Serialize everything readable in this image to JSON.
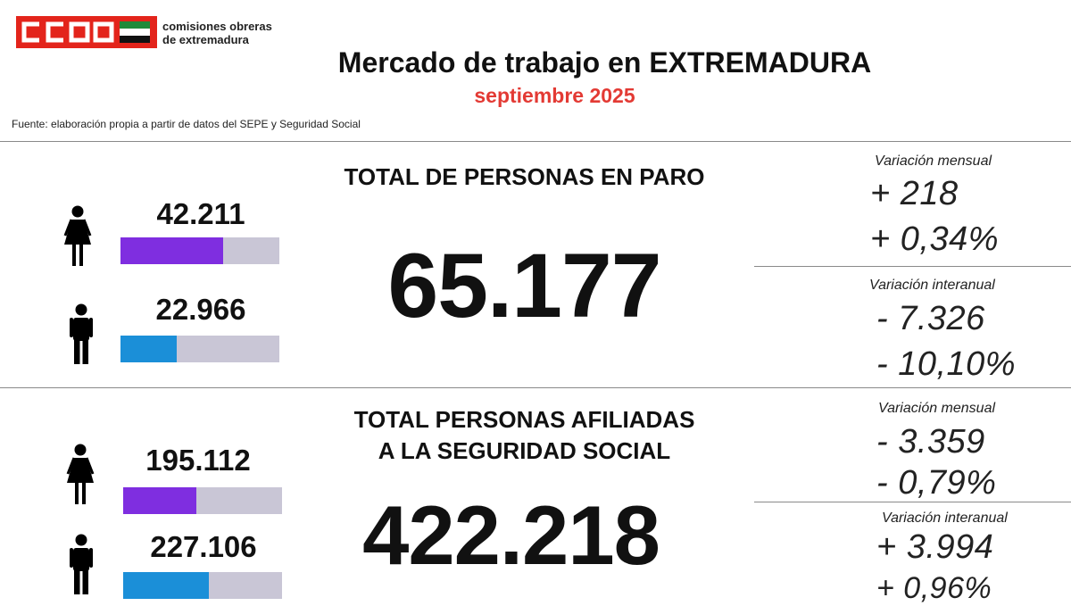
{
  "header": {
    "logo_text": "CCOO",
    "org_line1": "comisiones obreras",
    "org_line2": "de extremadura",
    "title": "Mercado de trabajo en EXTREMADURA",
    "subtitle": "septiembre 2025",
    "source": "Fuente: elaboración propia a partir de datos del SEPE y Seguridad Social"
  },
  "colors": {
    "brand_red": "#e3241b",
    "subtitle_red": "#e33a34",
    "women_bar": "#7f2ee0",
    "men_bar": "#1b8fd8",
    "bar_bg": "#c9c6d6",
    "flag_green": "#1f8a3a"
  },
  "paro": {
    "title": "TOTAL DE PERSONAS EN PARO",
    "total": "65.177",
    "women": {
      "icon": "woman-icon",
      "value": "42.211",
      "share": 0.648
    },
    "men": {
      "icon": "man-icon",
      "value": "22.966",
      "share": 0.352
    },
    "monthly_label": "Variación mensual",
    "monthly_abs": "+ 218",
    "monthly_pct": "+ 0,34%",
    "yearly_label": "Variación interanual",
    "yearly_abs": "- 7.326",
    "yearly_pct": "- 10,10%"
  },
  "afiliados": {
    "title_line1": "TOTAL PERSONAS AFILIADAS",
    "title_line2": "A LA SEGURIDAD SOCIAL",
    "total": "422.218",
    "women": {
      "icon": "woman-icon",
      "value": "195.112",
      "share": 0.462
    },
    "men": {
      "icon": "man-icon",
      "value": "227.106",
      "share": 0.538
    },
    "monthly_label": "Variación mensual",
    "monthly_abs": "- 3.359",
    "monthly_pct": "- 0,79%",
    "yearly_label": "Variación interanual",
    "yearly_abs": "+ 3.994",
    "yearly_pct": "+ 0,96%"
  }
}
